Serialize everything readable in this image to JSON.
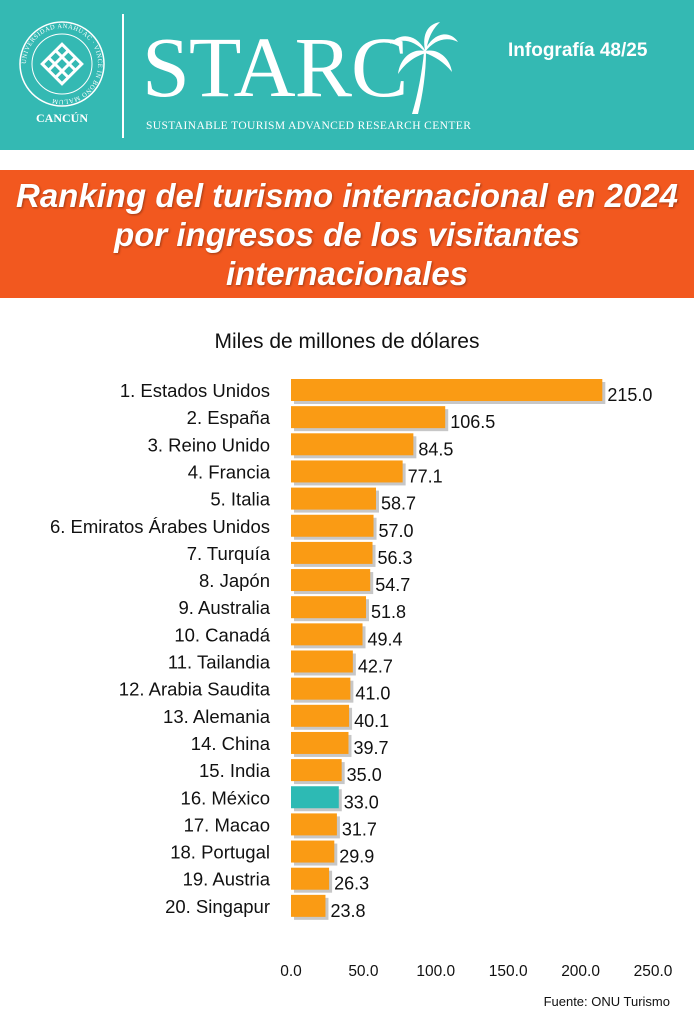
{
  "header": {
    "university_ring": "UNIVERSIDAD ANÁHUAC · VINCE IN BONO MALUM",
    "university_city": "CANCÚN",
    "brand": "STARC",
    "brand_subtitle": "SUSTAINABLE TOURISM ADVANCED RESEARCH CENTER",
    "badge": "Infografía 48/25",
    "color": "#34b9b3"
  },
  "banner": {
    "title": "Ranking del turismo internacional en 2024 por ingresos de los visitantes internacionales",
    "color": "#f2581f"
  },
  "footer": {
    "source": "Fuente: ONU Turismo"
  },
  "chart_data": {
    "type": "bar",
    "orientation": "horizontal",
    "title": "Miles de millones de dólares",
    "categories": [
      "1. Estados Unidos",
      "2. España",
      "3. Reino Unido",
      "4. Francia",
      "5. Italia",
      "6. Emiratos Árabes Unidos",
      "7. Turquía",
      "8. Japón",
      "9. Australia",
      "10. Canadá",
      "11. Tailandia",
      "12. Arabia Saudita",
      "13. Alemania",
      "14. China",
      "15. India",
      "16. México",
      "17. Macao",
      "18. Portugal",
      "19. Austria",
      "20. Singapur"
    ],
    "values": [
      215.0,
      106.5,
      84.5,
      77.1,
      58.7,
      57.0,
      56.3,
      54.7,
      51.8,
      49.4,
      42.7,
      41.0,
      40.1,
      39.7,
      35.0,
      33.0,
      31.7,
      29.9,
      26.3,
      23.8
    ],
    "value_labels": [
      "215.0",
      "106.5",
      "84.5",
      "77.1",
      "58.7",
      "57.0",
      "56.3",
      "54.7",
      "51.8",
      "49.4",
      "42.7",
      "41.0",
      "40.1",
      "39.7",
      "35.0",
      "33.0",
      "31.7",
      "29.9",
      "26.3",
      "23.8"
    ],
    "xlim": [
      0,
      250
    ],
    "x_ticks": [
      "0.0",
      "50.0",
      "100.0",
      "150.0",
      "200.0",
      "250.0"
    ],
    "grid": false,
    "bar_color": "#fa9b14",
    "highlight_category": "16. México",
    "highlight_color": "#2dbab4"
  }
}
